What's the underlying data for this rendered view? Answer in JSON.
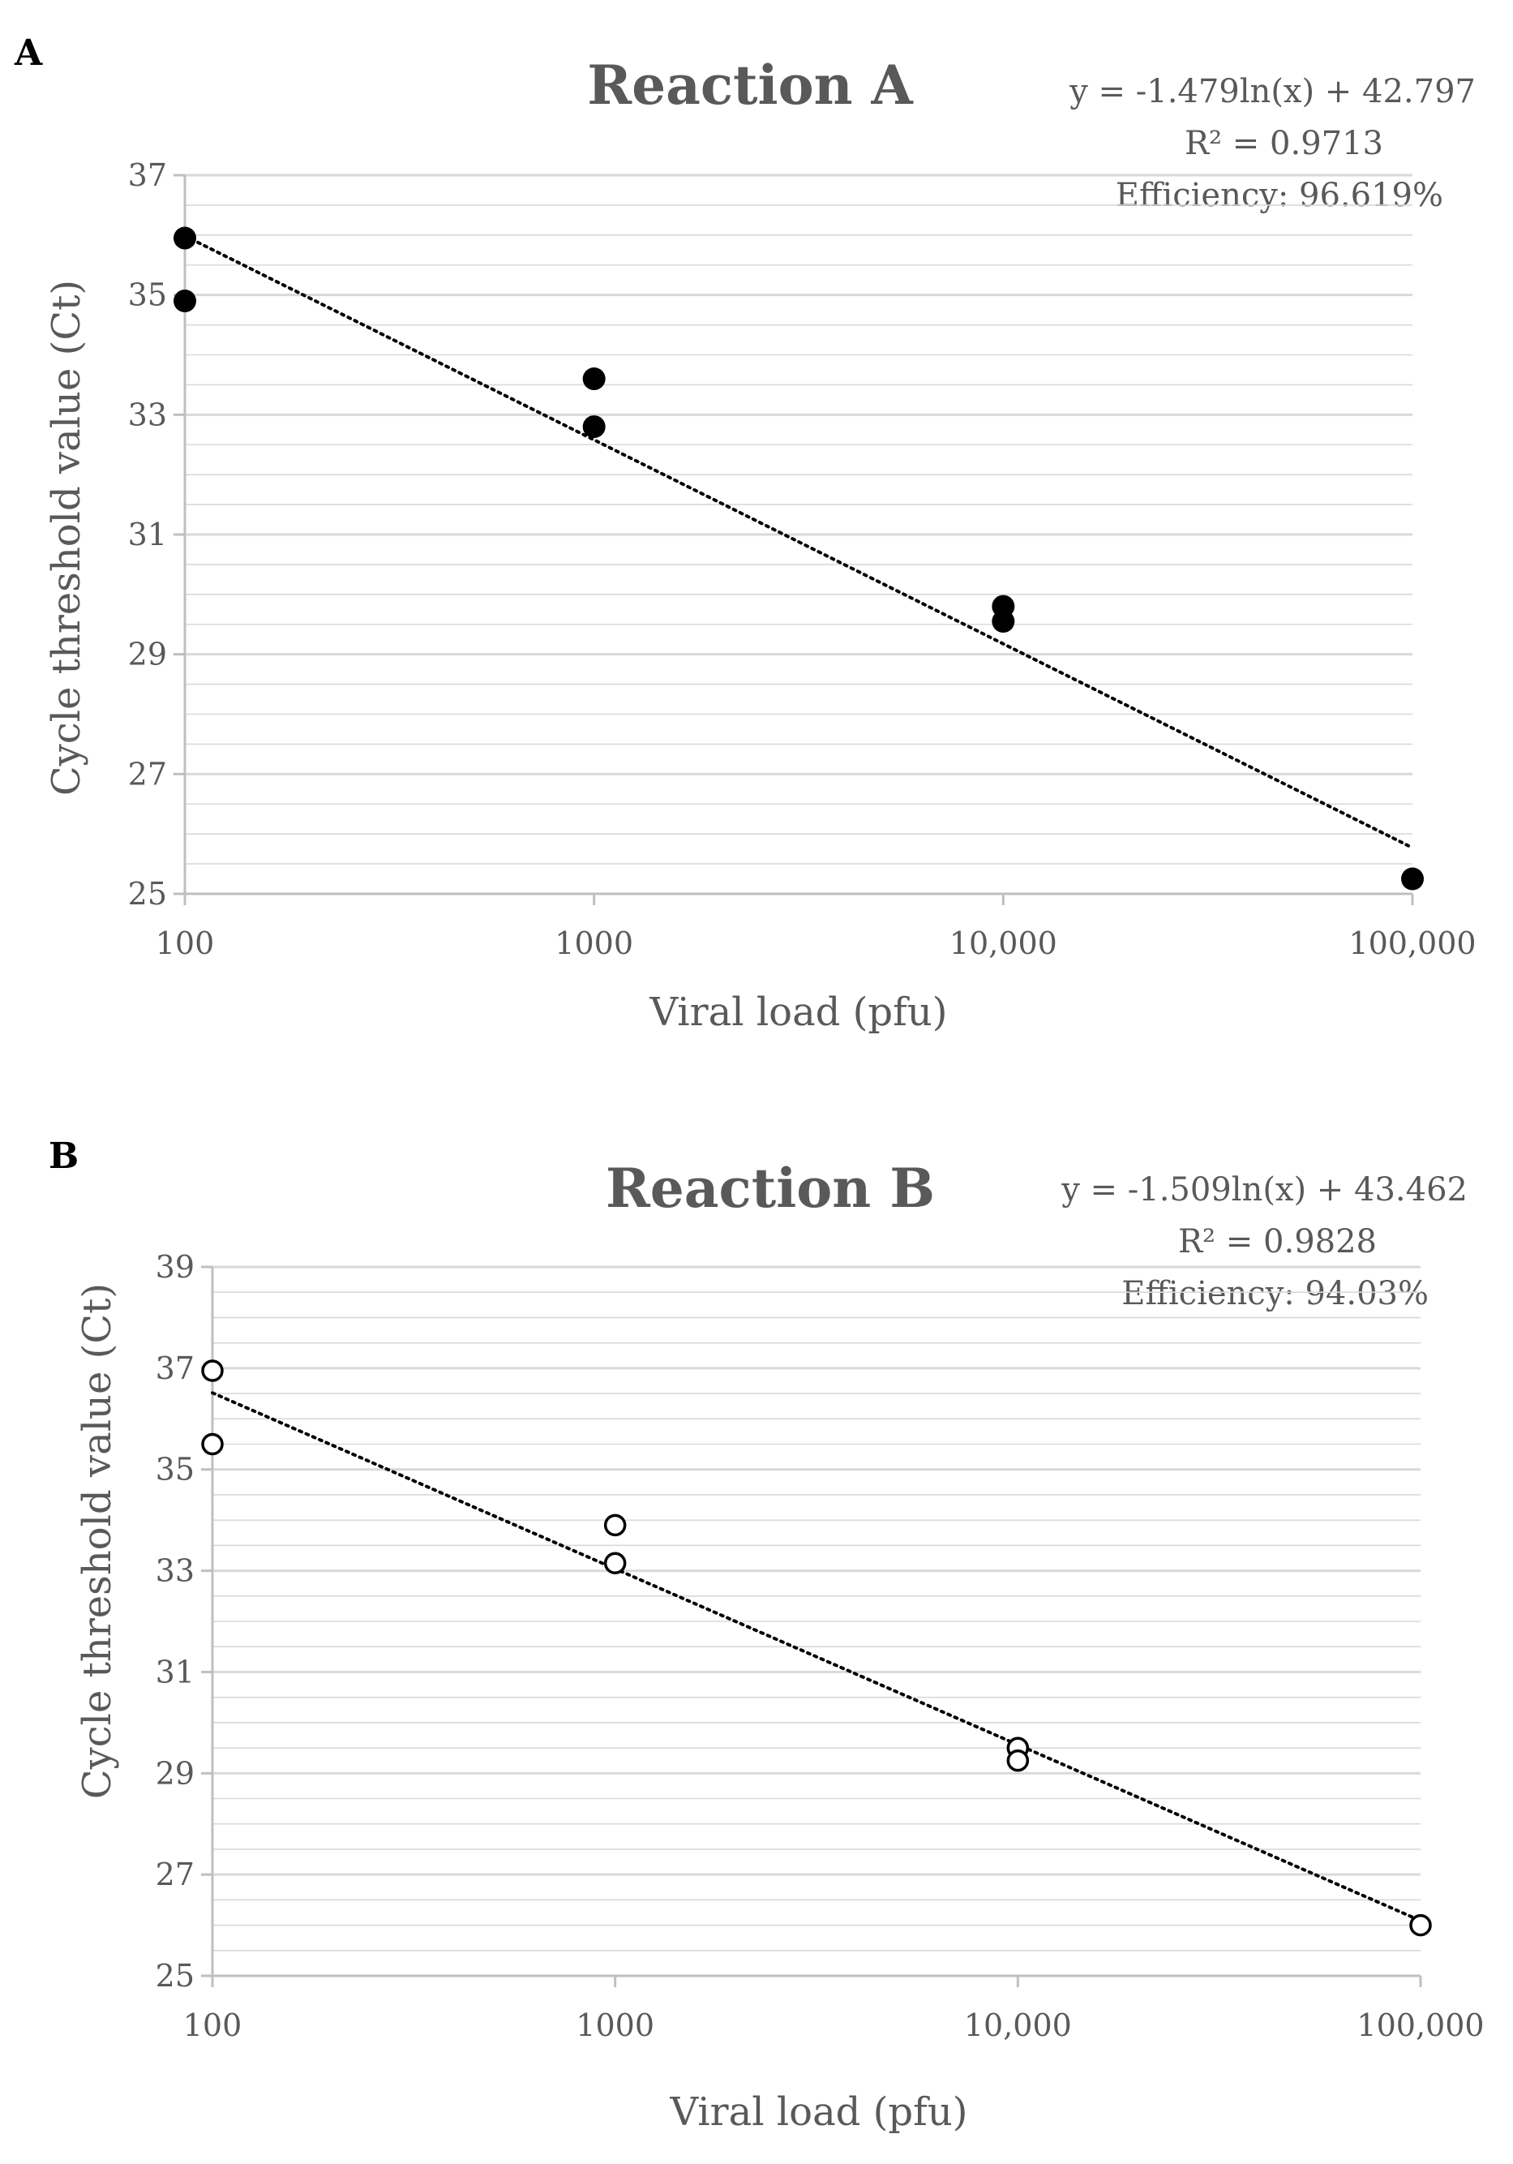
{
  "chart_data": [
    {
      "panel_label": "A",
      "type": "scatter",
      "title": "Reaction A",
      "xlabel": "Viral load (pfu)",
      "ylabel": "Cycle threshold value (Ct)",
      "x_scale": "log",
      "xlim": [
        100,
        100000
      ],
      "ylim": [
        25,
        37
      ],
      "x_ticks": [
        100,
        1000,
        10000,
        100000
      ],
      "x_tick_labels": [
        "100",
        "1000",
        "10,000",
        "100,000"
      ],
      "y_ticks": [
        25,
        27,
        29,
        31,
        33,
        35,
        37
      ],
      "y_tick_labels": [
        "25",
        "27",
        "29",
        "31",
        "33",
        "35",
        "37"
      ],
      "grid": true,
      "marker": "filled",
      "series": [
        {
          "name": "Reaction A",
          "points": [
            {
              "x": 100,
              "y": 35.95
            },
            {
              "x": 100,
              "y": 34.9
            },
            {
              "x": 1000,
              "y": 33.6
            },
            {
              "x": 1000,
              "y": 32.8
            },
            {
              "x": 10000,
              "y": 29.8
            },
            {
              "x": 10000,
              "y": 29.55
            },
            {
              "x": 100000,
              "y": 25.25
            }
          ]
        }
      ],
      "trendline": {
        "type": "logarithmic",
        "style": "dotted",
        "slope": -1.479,
        "intercept": 42.797
      },
      "annotations": [
        "y = -1.479ln(x) + 42.797",
        "R² = 0.9713",
        "Efficiency: 96.619%"
      ]
    },
    {
      "panel_label": "B",
      "type": "scatter",
      "title": "Reaction B",
      "xlabel": "Viral load (pfu)",
      "ylabel": "Cycle threshold value (Ct)",
      "x_scale": "log",
      "xlim": [
        100,
        100000
      ],
      "ylim": [
        25,
        39
      ],
      "x_ticks": [
        100,
        1000,
        10000,
        100000
      ],
      "x_tick_labels": [
        "100",
        "1000",
        "10,000",
        "100,000"
      ],
      "y_ticks": [
        25,
        27,
        29,
        31,
        33,
        35,
        37,
        39
      ],
      "y_tick_labels": [
        "25",
        "27",
        "29",
        "31",
        "33",
        "35",
        "37",
        "39"
      ],
      "grid": true,
      "marker": "hollow",
      "series": [
        {
          "name": "Reaction B",
          "points": [
            {
              "x": 100,
              "y": 36.95
            },
            {
              "x": 100,
              "y": 35.5
            },
            {
              "x": 1000,
              "y": 33.9
            },
            {
              "x": 1000,
              "y": 33.15
            },
            {
              "x": 10000,
              "y": 29.5
            },
            {
              "x": 10000,
              "y": 29.25
            },
            {
              "x": 100000,
              "y": 26.0
            }
          ]
        }
      ],
      "trendline": {
        "type": "logarithmic",
        "style": "dotted",
        "slope": -1.509,
        "intercept": 43.462
      },
      "annotations": [
        "y = -1.509ln(x) + 43.462",
        "R² = 0.9828",
        "Efficiency: 94.03%"
      ]
    }
  ],
  "colors": {
    "text": "#595959",
    "grid": "#d9d9d9",
    "axis": "#bfbfbf",
    "marker": "#000000",
    "trendline": "#000000"
  }
}
